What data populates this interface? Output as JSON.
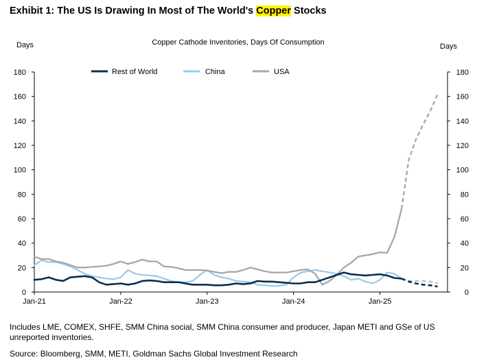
{
  "header": {
    "title_main": "Exhibit 1: The US Is Drawing In Most of The World's ",
    "title_highlight": "Copper",
    "title_end": " Stocks"
  },
  "footer": {
    "note": "Includes LME, COMEX, SHFE, SMM China social, SMM China consumer and producer, Japan METI and GSe of US unreported inventories.",
    "source": "Source: Bloomberg, SMM, METI, Goldman Sachs Global Investment Research"
  },
  "chart_data": {
    "type": "line",
    "title": "Copper Cathode Inventories, Days Of Consumption",
    "ylabel_left": "Days",
    "ylabel_right": "Days",
    "ylim": [
      0,
      180
    ],
    "yticks": [
      0,
      20,
      40,
      60,
      80,
      100,
      120,
      140,
      160,
      180
    ],
    "x_range": [
      2021.0,
      2025.75
    ],
    "xticks": [
      {
        "label": "Jan-21",
        "value": 2021.0
      },
      {
        "label": "Jan-22",
        "value": 2022.0
      },
      {
        "label": "Jan-23",
        "value": 2023.0
      },
      {
        "label": "Jan-24",
        "value": 2024.0
      },
      {
        "label": "Jan-25",
        "value": 2025.0
      }
    ],
    "legend_position": "top",
    "grid": false,
    "series": [
      {
        "name": "Rest of World",
        "color": "#0b2d4f",
        "forecast_from": 2025.25,
        "points": [
          [
            2021.0,
            10
          ],
          [
            2021.083,
            10.5
          ],
          [
            2021.167,
            12
          ],
          [
            2021.25,
            10
          ],
          [
            2021.333,
            9
          ],
          [
            2021.417,
            12
          ],
          [
            2021.5,
            12.5
          ],
          [
            2021.583,
            13
          ],
          [
            2021.667,
            12
          ],
          [
            2021.75,
            8
          ],
          [
            2021.833,
            6
          ],
          [
            2021.917,
            6.5
          ],
          [
            2022.0,
            7
          ],
          [
            2022.083,
            6
          ],
          [
            2022.167,
            7
          ],
          [
            2022.25,
            9
          ],
          [
            2022.333,
            9.5
          ],
          [
            2022.417,
            9
          ],
          [
            2022.5,
            8
          ],
          [
            2022.583,
            8
          ],
          [
            2022.667,
            8
          ],
          [
            2022.75,
            7
          ],
          [
            2022.833,
            6
          ],
          [
            2022.917,
            6
          ],
          [
            2023.0,
            6
          ],
          [
            2023.083,
            5.5
          ],
          [
            2023.167,
            5.5
          ],
          [
            2023.25,
            6
          ],
          [
            2023.333,
            7
          ],
          [
            2023.417,
            6.5
          ],
          [
            2023.5,
            7
          ],
          [
            2023.583,
            9
          ],
          [
            2023.667,
            8.5
          ],
          [
            2023.75,
            8.5
          ],
          [
            2023.833,
            8
          ],
          [
            2023.917,
            7.5
          ],
          [
            2024.0,
            7
          ],
          [
            2024.083,
            7
          ],
          [
            2024.167,
            8
          ],
          [
            2024.25,
            8
          ],
          [
            2024.333,
            10
          ],
          [
            2024.417,
            12
          ],
          [
            2024.5,
            14
          ],
          [
            2024.583,
            16
          ],
          [
            2024.667,
            14.5
          ],
          [
            2024.75,
            14
          ],
          [
            2024.833,
            13.5
          ],
          [
            2024.917,
            14
          ],
          [
            2025.0,
            14.5
          ],
          [
            2025.083,
            13.5
          ],
          [
            2025.167,
            11.5
          ],
          [
            2025.25,
            11
          ],
          [
            2025.333,
            8.5
          ],
          [
            2025.417,
            7
          ],
          [
            2025.5,
            6
          ],
          [
            2025.583,
            5.5
          ],
          [
            2025.667,
            4.5
          ]
        ]
      },
      {
        "name": "China",
        "color": "#9ccbe8",
        "forecast_from": 2025.25,
        "points": [
          [
            2021.0,
            22
          ],
          [
            2021.083,
            26
          ],
          [
            2021.167,
            24.5
          ],
          [
            2021.25,
            24.5
          ],
          [
            2021.333,
            23
          ],
          [
            2021.417,
            21
          ],
          [
            2021.5,
            18
          ],
          [
            2021.583,
            15
          ],
          [
            2021.667,
            13
          ],
          [
            2021.75,
            12
          ],
          [
            2021.833,
            11
          ],
          [
            2021.917,
            10.5
          ],
          [
            2022.0,
            12
          ],
          [
            2022.083,
            18
          ],
          [
            2022.167,
            15
          ],
          [
            2022.25,
            14
          ],
          [
            2022.333,
            13.5
          ],
          [
            2022.417,
            13
          ],
          [
            2022.5,
            11
          ],
          [
            2022.583,
            9
          ],
          [
            2022.667,
            8
          ],
          [
            2022.75,
            8
          ],
          [
            2022.833,
            9
          ],
          [
            2022.917,
            14
          ],
          [
            2023.0,
            18
          ],
          [
            2023.083,
            14
          ],
          [
            2023.167,
            12
          ],
          [
            2023.25,
            11
          ],
          [
            2023.333,
            9
          ],
          [
            2023.417,
            8.5
          ],
          [
            2023.5,
            8
          ],
          [
            2023.583,
            6
          ],
          [
            2023.667,
            5.5
          ],
          [
            2023.75,
            5
          ],
          [
            2023.833,
            5
          ],
          [
            2023.917,
            6
          ],
          [
            2024.0,
            12
          ],
          [
            2024.083,
            16
          ],
          [
            2024.167,
            17
          ],
          [
            2024.25,
            18
          ],
          [
            2024.333,
            17
          ],
          [
            2024.417,
            16
          ],
          [
            2024.5,
            15
          ],
          [
            2024.583,
            13
          ],
          [
            2024.667,
            10
          ],
          [
            2024.75,
            11
          ],
          [
            2024.833,
            8.5
          ],
          [
            2024.917,
            7
          ],
          [
            2025.0,
            10
          ],
          [
            2025.083,
            16
          ],
          [
            2025.167,
            15
          ],
          [
            2025.25,
            11
          ],
          [
            2025.333,
            9
          ],
          [
            2025.417,
            9
          ],
          [
            2025.5,
            9
          ],
          [
            2025.583,
            8.5
          ],
          [
            2025.667,
            7
          ]
        ]
      },
      {
        "name": "USA",
        "color": "#a6a6a6",
        "forecast_from": 2025.25,
        "points": [
          [
            2021.0,
            29
          ],
          [
            2021.083,
            27
          ],
          [
            2021.167,
            27
          ],
          [
            2021.25,
            25
          ],
          [
            2021.333,
            24
          ],
          [
            2021.417,
            22
          ],
          [
            2021.5,
            20
          ],
          [
            2021.583,
            20
          ],
          [
            2021.667,
            20.5
          ],
          [
            2021.75,
            21
          ],
          [
            2021.833,
            21.5
          ],
          [
            2021.917,
            23
          ],
          [
            2022.0,
            25
          ],
          [
            2022.083,
            23
          ],
          [
            2022.167,
            24.5
          ],
          [
            2022.25,
            26.5
          ],
          [
            2022.333,
            25
          ],
          [
            2022.417,
            25
          ],
          [
            2022.5,
            21
          ],
          [
            2022.583,
            20.5
          ],
          [
            2022.667,
            19.5
          ],
          [
            2022.75,
            18
          ],
          [
            2022.833,
            18
          ],
          [
            2022.917,
            18
          ],
          [
            2023.0,
            17.5
          ],
          [
            2023.083,
            16.5
          ],
          [
            2023.167,
            15.5
          ],
          [
            2023.25,
            16.5
          ],
          [
            2023.333,
            16.5
          ],
          [
            2023.417,
            18
          ],
          [
            2023.5,
            20
          ],
          [
            2023.583,
            18.5
          ],
          [
            2023.667,
            17
          ],
          [
            2023.75,
            16
          ],
          [
            2023.833,
            16
          ],
          [
            2023.917,
            16
          ],
          [
            2024.0,
            17
          ],
          [
            2024.083,
            18
          ],
          [
            2024.167,
            18.5
          ],
          [
            2024.25,
            15
          ],
          [
            2024.333,
            6
          ],
          [
            2024.417,
            9
          ],
          [
            2024.5,
            14
          ],
          [
            2024.583,
            20
          ],
          [
            2024.667,
            24
          ],
          [
            2024.75,
            29
          ],
          [
            2024.833,
            30
          ],
          [
            2024.917,
            31
          ],
          [
            2025.0,
            32.5
          ],
          [
            2025.083,
            32
          ],
          [
            2025.167,
            45
          ],
          [
            2025.25,
            68
          ],
          [
            2025.333,
            108
          ],
          [
            2025.417,
            125
          ],
          [
            2025.5,
            137
          ],
          [
            2025.583,
            148
          ],
          [
            2025.667,
            162
          ]
        ]
      }
    ]
  }
}
